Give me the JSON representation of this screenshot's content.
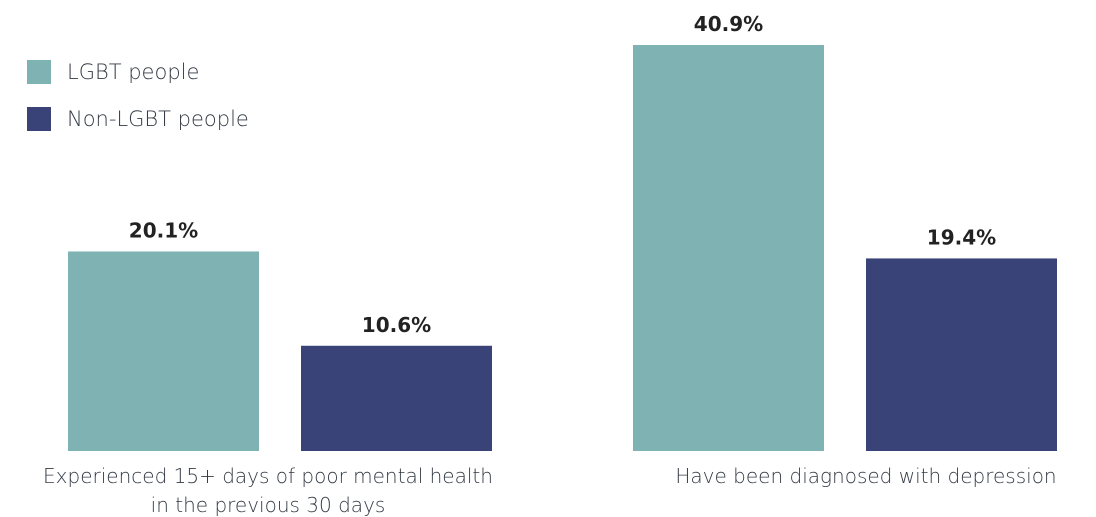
{
  "chart_data": {
    "type": "bar",
    "categories": [
      [
        "Experienced 15+ days of poor mental health",
        "in the previous 30 days"
      ],
      [
        "Have been diagnosed with depression"
      ]
    ],
    "series": [
      {
        "name": "LGBT people",
        "color": "#7fb3b3",
        "values": [
          20.1,
          40.9
        ],
        "labels": [
          "20.1%",
          "40.9%"
        ]
      },
      {
        "name": "Non-LGBT people",
        "color": "#394377",
        "values": [
          10.6,
          19.4
        ],
        "labels": [
          "10.6%",
          "19.4%"
        ]
      }
    ],
    "ylim": [
      0,
      40.9
    ],
    "grid": false,
    "legend_position": "top-left"
  }
}
